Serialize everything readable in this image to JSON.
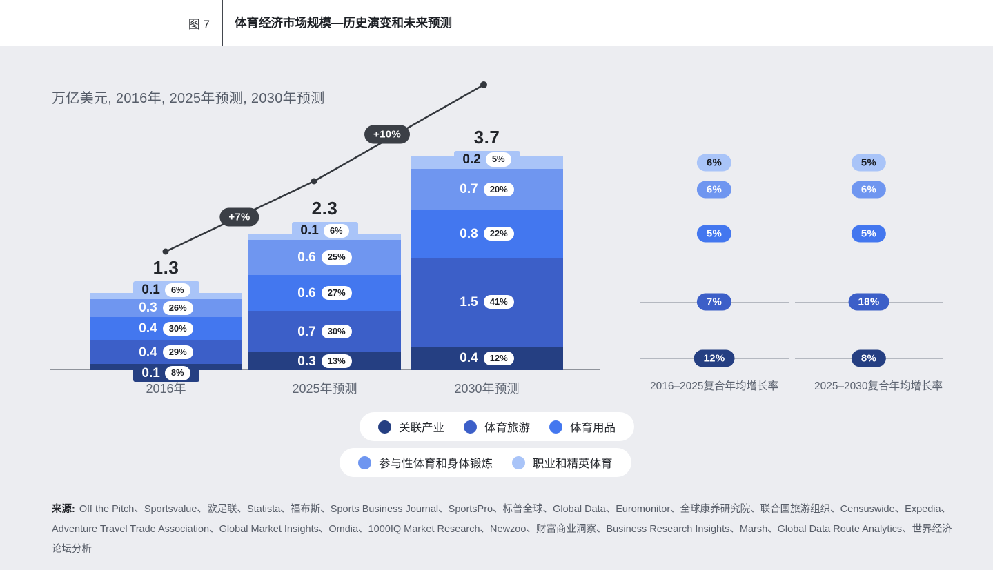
{
  "header": {
    "figure_label": "图 7",
    "title": "体育经济市场规模—历史演变和未来预测"
  },
  "subtitle": "万亿美元, 2016年, 2025年预测, 2030年预测",
  "colors": {
    "navy": "#253f82",
    "royal": "#3c5fc8",
    "bright": "#4377ef",
    "light": "#6f96f0",
    "lightest": "#a9c4f8",
    "trend": "#33373d",
    "dark_text": "#1a1d23",
    "white_text": "#ffffff"
  },
  "chart_data": {
    "type": "bar",
    "stacked": true,
    "unit": "万亿美元",
    "categories": [
      "2016年",
      "2025年预测",
      "2030年预测"
    ],
    "totals": [
      "1.3",
      "2.3",
      "3.7"
    ],
    "series": [
      {
        "name": "关联产业",
        "color_key": "navy",
        "values": [
          "0.1",
          "0.3",
          "0.4"
        ],
        "pcts": [
          "8%",
          "13%",
          "12%"
        ]
      },
      {
        "name": "体育旅游",
        "color_key": "royal",
        "values": [
          "0.4",
          "0.7",
          "1.5"
        ],
        "pcts": [
          "29%",
          "30%",
          "41%"
        ]
      },
      {
        "name": "体育用品",
        "color_key": "bright",
        "values": [
          "0.4",
          "0.6",
          "0.8"
        ],
        "pcts": [
          "30%",
          "27%",
          "22%"
        ]
      },
      {
        "name": "参与性体育和身体锻炼",
        "color_key": "light",
        "values": [
          "0.3",
          "0.6",
          "0.7"
        ],
        "pcts": [
          "26%",
          "25%",
          "20%"
        ]
      },
      {
        "name": "职业和精英体育",
        "color_key": "lightest",
        "values": [
          "0.1",
          "0.1",
          "0.2"
        ],
        "pcts": [
          "6%",
          "6%",
          "5%"
        ]
      }
    ],
    "growth_annotations": [
      {
        "label": "+7%"
      },
      {
        "label": "+10%"
      }
    ],
    "cagr_columns": [
      "2016–2025复合年均增长率",
      "2025–2030复合年均增长率"
    ],
    "cagr_rows": [
      {
        "series": "职业和精英体育",
        "color_key": "lightest",
        "cagr_2016_2025": "6%",
        "cagr_2025_2030": "5%"
      },
      {
        "series": "参与性体育和身体锻炼",
        "color_key": "light",
        "cagr_2016_2025": "6%",
        "cagr_2025_2030": "6%"
      },
      {
        "series": "体育用品",
        "color_key": "bright",
        "cagr_2016_2025": "5%",
        "cagr_2025_2030": "5%"
      },
      {
        "series": "体育旅游",
        "color_key": "royal",
        "cagr_2016_2025": "7%",
        "cagr_2025_2030": "18%"
      },
      {
        "series": "关联产业",
        "color_key": "navy",
        "cagr_2016_2025": "12%",
        "cagr_2025_2030": "8%"
      }
    ],
    "legend_rows": [
      [
        {
          "label": "关联产业",
          "color_key": "navy"
        },
        {
          "label": "体育旅游",
          "color_key": "royal"
        },
        {
          "label": "体育用品",
          "color_key": "bright"
        }
      ],
      [
        {
          "label": "参与性体育和身体锻炼",
          "color_key": "light"
        },
        {
          "label": "职业和精英体育",
          "color_key": "lightest"
        }
      ]
    ]
  },
  "source": {
    "prefix": "来源:",
    "text": "Off the Pitch、Sportsvalue、欧足联、Statista、福布斯、Sports Business Journal、SportsPro、标普全球、Global Data、Euromonitor、全球康养研究院、联合国旅游组织、Censuswide、Expedia、Adventure Travel Trade Association、Global Market Insights、Omdia、1000IQ Market Research、Newzoo、财富商业洞察、Business Research Insights、Marsh、Global Data Route Analytics、世界经济论坛分析"
  }
}
